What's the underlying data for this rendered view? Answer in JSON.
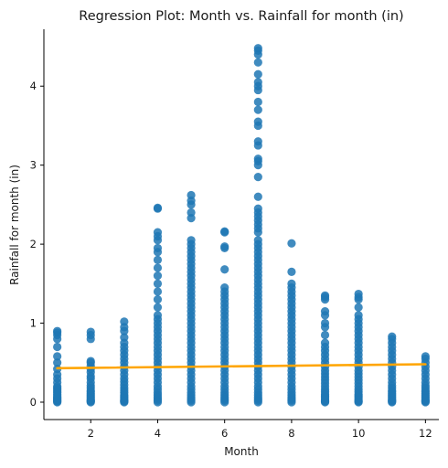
{
  "chart_data": {
    "type": "scatter",
    "title": "Regression Plot: Month vs. Rainfall for month (in)",
    "xlabel": "Month",
    "ylabel": "Rainfall for month (in)",
    "xlim": [
      0.6,
      12.4
    ],
    "ylim": [
      -0.22,
      4.72
    ],
    "xticks": [
      2,
      4,
      6,
      8,
      10,
      12
    ],
    "yticks": [
      0,
      1,
      2,
      3,
      4
    ],
    "grid": false,
    "legend": "none",
    "colors": {
      "points": "#1f77b4",
      "regression": "#ffa500"
    },
    "regression_line": {
      "x": [
        1,
        12
      ],
      "y": [
        0.43,
        0.48
      ]
    },
    "series": [
      {
        "month": 1,
        "max": 0.9,
        "values": [
          0,
          0.01,
          0.02,
          0.03,
          0.04,
          0.05,
          0.06,
          0.08,
          0.1,
          0.12,
          0.14,
          0.16,
          0.18,
          0.2,
          0.25,
          0.3,
          0.35,
          0.42,
          0.5,
          0.58,
          0.7,
          0.8,
          0.85,
          0.88,
          0.9
        ]
      },
      {
        "month": 2,
        "max": 0.89,
        "values": [
          0,
          0.01,
          0.02,
          0.03,
          0.05,
          0.07,
          0.09,
          0.11,
          0.13,
          0.15,
          0.18,
          0.21,
          0.25,
          0.3,
          0.33,
          0.38,
          0.42,
          0.46,
          0.5,
          0.52,
          0.8,
          0.85,
          0.89
        ]
      },
      {
        "month": 3,
        "max": 1.02,
        "values": [
          0,
          0.01,
          0.02,
          0.03,
          0.05,
          0.07,
          0.09,
          0.12,
          0.15,
          0.18,
          0.22,
          0.26,
          0.3,
          0.35,
          0.4,
          0.45,
          0.5,
          0.55,
          0.6,
          0.65,
          0.7,
          0.75,
          0.82,
          0.9,
          0.95,
          1.02
        ]
      },
      {
        "month": 4,
        "max": 2.46,
        "values": [
          0,
          0.02,
          0.04,
          0.06,
          0.09,
          0.12,
          0.16,
          0.2,
          0.25,
          0.3,
          0.35,
          0.4,
          0.45,
          0.5,
          0.55,
          0.6,
          0.65,
          0.7,
          0.75,
          0.8,
          0.85,
          0.9,
          0.95,
          1.0,
          1.05,
          1.1,
          1.2,
          1.3,
          1.4,
          1.5,
          1.6,
          1.7,
          1.8,
          1.9,
          1.95,
          2.05,
          2.1,
          2.15,
          2.45,
          2.46
        ]
      },
      {
        "month": 5,
        "max": 2.62,
        "values": [
          0,
          0.02,
          0.04,
          0.06,
          0.09,
          0.12,
          0.16,
          0.2,
          0.25,
          0.3,
          0.35,
          0.4,
          0.45,
          0.5,
          0.55,
          0.6,
          0.65,
          0.7,
          0.75,
          0.8,
          0.85,
          0.9,
          0.95,
          1.0,
          1.05,
          1.1,
          1.15,
          1.2,
          1.25,
          1.3,
          1.35,
          1.4,
          1.45,
          1.5,
          1.55,
          1.6,
          1.65,
          1.7,
          1.75,
          1.8,
          1.85,
          1.9,
          1.95,
          2.0,
          2.05,
          2.33,
          2.4,
          2.5,
          2.55,
          2.62
        ]
      },
      {
        "month": 6,
        "max": 2.16,
        "values": [
          0,
          0.02,
          0.04,
          0.06,
          0.09,
          0.12,
          0.16,
          0.2,
          0.25,
          0.3,
          0.35,
          0.4,
          0.45,
          0.5,
          0.55,
          0.6,
          0.65,
          0.7,
          0.75,
          0.8,
          0.85,
          0.9,
          0.95,
          1.0,
          1.05,
          1.1,
          1.15,
          1.2,
          1.25,
          1.3,
          1.35,
          1.4,
          1.45,
          1.68,
          1.95,
          1.97,
          2.15,
          2.16
        ]
      },
      {
        "month": 7,
        "max": 4.48,
        "values": [
          0,
          0.02,
          0.04,
          0.06,
          0.09,
          0.12,
          0.16,
          0.2,
          0.25,
          0.3,
          0.35,
          0.4,
          0.45,
          0.5,
          0.55,
          0.6,
          0.65,
          0.7,
          0.75,
          0.8,
          0.85,
          0.9,
          0.95,
          1.0,
          1.05,
          1.1,
          1.15,
          1.2,
          1.25,
          1.3,
          1.35,
          1.4,
          1.45,
          1.5,
          1.55,
          1.6,
          1.65,
          1.7,
          1.75,
          1.8,
          1.85,
          1.9,
          1.95,
          2.0,
          2.05,
          2.15,
          2.2,
          2.25,
          2.3,
          2.35,
          2.4,
          2.45,
          2.6,
          2.85,
          3.0,
          3.05,
          3.08,
          3.25,
          3.3,
          3.5,
          3.55,
          3.7,
          3.8,
          3.95,
          4.0,
          4.05,
          4.15,
          4.3,
          4.4,
          4.45,
          4.48
        ]
      },
      {
        "month": 8,
        "max": 2.01,
        "values": [
          0,
          0.02,
          0.04,
          0.06,
          0.09,
          0.12,
          0.16,
          0.2,
          0.25,
          0.3,
          0.35,
          0.4,
          0.45,
          0.5,
          0.55,
          0.6,
          0.65,
          0.7,
          0.75,
          0.8,
          0.85,
          0.9,
          0.95,
          1.0,
          1.05,
          1.1,
          1.15,
          1.2,
          1.25,
          1.3,
          1.35,
          1.4,
          1.45,
          1.5,
          1.65,
          2.01
        ]
      },
      {
        "month": 9,
        "max": 1.35,
        "values": [
          0,
          0.01,
          0.02,
          0.04,
          0.06,
          0.08,
          0.1,
          0.13,
          0.16,
          0.2,
          0.24,
          0.28,
          0.32,
          0.36,
          0.4,
          0.45,
          0.5,
          0.55,
          0.6,
          0.65,
          0.7,
          0.75,
          0.85,
          0.95,
          1.0,
          1.1,
          1.15,
          1.3,
          1.33,
          1.35
        ]
      },
      {
        "month": 10,
        "max": 1.37,
        "values": [
          0,
          0.01,
          0.02,
          0.04,
          0.06,
          0.08,
          0.1,
          0.13,
          0.16,
          0.2,
          0.24,
          0.28,
          0.32,
          0.36,
          0.4,
          0.45,
          0.5,
          0.55,
          0.6,
          0.65,
          0.7,
          0.75,
          0.8,
          0.85,
          0.9,
          0.95,
          1.0,
          1.05,
          1.1,
          1.2,
          1.3,
          1.33,
          1.37
        ]
      },
      {
        "month": 11,
        "max": 0.83,
        "values": [
          0,
          0.01,
          0.02,
          0.03,
          0.05,
          0.07,
          0.09,
          0.11,
          0.13,
          0.15,
          0.18,
          0.21,
          0.25,
          0.3,
          0.35,
          0.4,
          0.45,
          0.5,
          0.55,
          0.6,
          0.65,
          0.7,
          0.75,
          0.8,
          0.83
        ]
      },
      {
        "month": 12,
        "max": 0.58,
        "values": [
          0,
          0.01,
          0.02,
          0.03,
          0.05,
          0.07,
          0.09,
          0.11,
          0.13,
          0.15,
          0.18,
          0.21,
          0.25,
          0.3,
          0.35,
          0.4,
          0.45,
          0.5,
          0.55,
          0.58
        ]
      }
    ]
  }
}
